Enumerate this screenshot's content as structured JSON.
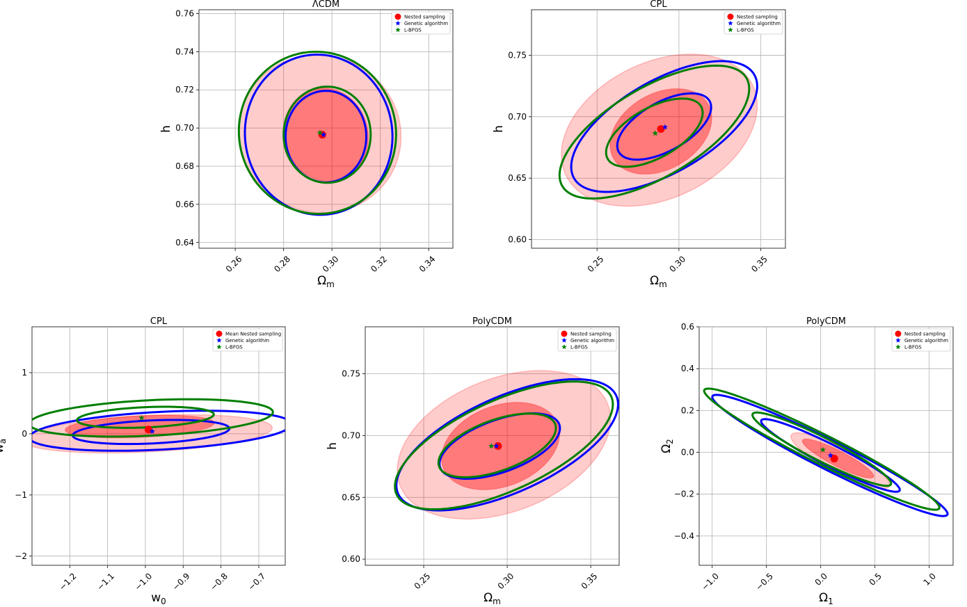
{
  "colors": {
    "nested_fill": "#ff0000",
    "genetic": "#0000ff",
    "lbfgs": "#007f00",
    "grid": "#b0b0b0"
  },
  "chart_data": [
    {
      "type": "scatter",
      "title": "ΛCDM",
      "xlabel": "Ω",
      "xlabel_sub": "m",
      "ylabel": "h",
      "ylabel_sub": "",
      "xlim": [
        0.245,
        0.35
      ],
      "ylim": [
        0.637,
        0.762
      ],
      "xticks": [
        0.26,
        0.28,
        0.3,
        0.32,
        0.34
      ],
      "xtick_labels": [
        "0.26",
        "0.28",
        "0.30",
        "0.32",
        "0.34"
      ],
      "yticks": [
        0.64,
        0.66,
        0.68,
        0.7,
        0.72,
        0.74,
        0.76
      ],
      "ytick_labels": [
        "0.64",
        "0.66",
        "0.68",
        "0.70",
        "0.72",
        "0.74",
        "0.76"
      ],
      "xtick_rotation": true,
      "legend": [
        "Nested sampling",
        "Genetic algorithm",
        "L-BFGS"
      ],
      "legend_position": "top-right",
      "points": {
        "nested": [
          0.296,
          0.6965
        ],
        "genetic": [
          0.2965,
          0.6965
        ],
        "lbfgs": [
          0.295,
          0.6975
        ]
      },
      "regions": [
        {
          "series": "Nested sampling",
          "level": "2-sigma",
          "cx": 0.295,
          "cy": 0.697,
          "rx": 0.0335,
          "ry": 0.0415,
          "angle": 5
        },
        {
          "series": "Nested sampling",
          "level": "1-sigma",
          "cx": 0.2975,
          "cy": 0.6965,
          "rx": 0.0175,
          "ry": 0.0245,
          "angle": 5
        }
      ],
      "contours": [
        {
          "series": "Genetic algorithm",
          "level": "2-sigma",
          "cx": 0.2945,
          "cy": 0.6965,
          "rx": 0.0305,
          "ry": 0.042,
          "angle": 2
        },
        {
          "series": "Genetic algorithm",
          "level": "1-sigma",
          "cx": 0.2975,
          "cy": 0.6955,
          "rx": 0.0167,
          "ry": 0.024,
          "angle": 0
        },
        {
          "series": "L-BFGS",
          "level": "2-sigma",
          "cx": 0.294,
          "cy": 0.6975,
          "rx": 0.0325,
          "ry": 0.0425,
          "angle": 2
        },
        {
          "series": "L-BFGS",
          "level": "1-sigma",
          "cx": 0.298,
          "cy": 0.6965,
          "rx": 0.018,
          "ry": 0.0252,
          "angle": 0
        }
      ]
    },
    {
      "type": "scatter",
      "title": "CPL",
      "xlabel": "Ω",
      "xlabel_sub": "m",
      "ylabel": "h",
      "ylabel_sub": "",
      "xlim": [
        0.21,
        0.365
      ],
      "ylim": [
        0.593,
        0.787
      ],
      "xticks": [
        0.25,
        0.3,
        0.35
      ],
      "xtick_labels": [
        "0.25",
        "0.30",
        "0.35"
      ],
      "yticks": [
        0.6,
        0.65,
        0.7,
        0.75
      ],
      "ytick_labels": [
        "0.60",
        "0.65",
        "0.70",
        "0.75"
      ],
      "xtick_rotation": true,
      "legend": [
        "Nested sampling",
        "Genetic algorithm",
        "L-BFGS"
      ],
      "legend_position": "top-right",
      "points": {
        "nested": [
          0.289,
          0.69
        ],
        "genetic": [
          0.2915,
          0.6915
        ],
        "lbfgs": [
          0.2855,
          0.6865
        ]
      },
      "regions": [
        {
          "series": "Nested sampling",
          "level": "2-sigma",
          "cx": 0.288,
          "cy": 0.689,
          "rx": 0.05,
          "ry": 0.07,
          "angle": -42
        },
        {
          "series": "Nested sampling",
          "level": "1-sigma",
          "cx": 0.289,
          "cy": 0.688,
          "rx": 0.027,
          "ry": 0.038,
          "angle": -35
        }
      ],
      "contours": [
        {
          "series": "Genetic algorithm",
          "level": "2-sigma",
          "cx": 0.291,
          "cy": 0.692,
          "rx": 0.07,
          "ry": 0.034,
          "angle": 42
        },
        {
          "series": "Genetic algorithm",
          "level": "1-sigma",
          "cx": 0.291,
          "cy": 0.692,
          "rx": 0.035,
          "ry": 0.018,
          "angle": 42
        },
        {
          "series": "L-BFGS",
          "level": "2-sigma",
          "cx": 0.285,
          "cy": 0.6875,
          "rx": 0.072,
          "ry": 0.033,
          "angle": 42
        },
        {
          "series": "L-BFGS",
          "level": "1-sigma",
          "cx": 0.285,
          "cy": 0.687,
          "rx": 0.036,
          "ry": 0.0185,
          "angle": 42
        }
      ]
    },
    {
      "type": "scatter",
      "title": "CPL",
      "xlabel": "w",
      "xlabel_sub": "0",
      "ylabel": "w",
      "ylabel_sub": "a",
      "xlim": [
        -1.3,
        -0.63
      ],
      "ylim": [
        -2.15,
        1.75
      ],
      "xticks": [
        -1.2,
        -1.1,
        -1.0,
        -0.9,
        -0.8,
        -0.7
      ],
      "xtick_labels": [
        "−1.2",
        "−1.1",
        "−1.0",
        "−0.9",
        "−0.8",
        "−0.7"
      ],
      "yticks": [
        -2,
        -1,
        0,
        1
      ],
      "ytick_labels": [
        "−2",
        "−1",
        "0",
        "1"
      ],
      "xtick_rotation": true,
      "legend": [
        "Mean Nested sampling",
        "Genetic algorithm",
        "L-BFGS"
      ],
      "legend_position": "top-right",
      "points": {
        "nested": [
          -0.992,
          0.07
        ],
        "genetic": [
          -0.982,
          0.04
        ],
        "lbfgs": [
          -1.01,
          0.26
        ]
      },
      "regions": [
        {
          "series": "Nested sampling",
          "level": "2-sigma",
          "cx": -0.995,
          "cy": 0.0,
          "rx": 0.265,
          "ry": 0.37,
          "angle": -50
        },
        {
          "series": "Nested sampling",
          "level": "1-sigma",
          "cx": -1.015,
          "cy": 0.12,
          "rx": 0.16,
          "ry": 0.22,
          "angle": -50
        }
      ],
      "contours": [
        {
          "series": "Genetic algorithm",
          "level": "2-sigma",
          "cx": -0.96,
          "cy": 0.05,
          "rx": 0.275,
          "ry": 0.39,
          "angle": -50
        },
        {
          "series": "Genetic algorithm",
          "level": "1-sigma",
          "cx": -0.985,
          "cy": 0.03,
          "rx": 0.17,
          "ry": 0.23,
          "angle": -50
        },
        {
          "series": "L-BFGS",
          "level": "2-sigma",
          "cx": -0.985,
          "cy": 0.26,
          "rx": 0.26,
          "ry": 0.36,
          "angle": -50
        },
        {
          "series": "L-BFGS",
          "level": "1-sigma",
          "cx": -1.0,
          "cy": 0.27,
          "rx": 0.15,
          "ry": 0.2,
          "angle": -50
        }
      ]
    },
    {
      "type": "scatter",
      "title": "PolyCDM",
      "xlabel": "Ω",
      "xlabel_sub": "m",
      "ylabel": "h",
      "ylabel_sub": "",
      "xlim": [
        0.215,
        0.367
      ],
      "ylim": [
        0.595,
        0.788
      ],
      "xticks": [
        0.25,
        0.3,
        0.35
      ],
      "xtick_labels": [
        "0.25",
        "0.30",
        "0.35"
      ],
      "yticks": [
        0.6,
        0.65,
        0.7,
        0.75
      ],
      "ytick_labels": [
        "0.60",
        "0.65",
        "0.70",
        "0.75"
      ],
      "xtick_rotation": true,
      "legend": [
        "Nested sampling",
        "Genetic algorithm",
        "L-BFGS"
      ],
      "legend_position": "top-right",
      "points": {
        "nested": [
          0.2945,
          0.6915
        ],
        "genetic": [
          0.2935,
          0.6915
        ],
        "lbfgs": [
          0.2905,
          0.6915
        ]
      },
      "regions": [
        {
          "series": "Nested sampling",
          "level": "2-sigma",
          "cx": 0.298,
          "cy": 0.6925,
          "rx": 0.05,
          "ry": 0.072,
          "angle": -50
        },
        {
          "series": "Nested sampling",
          "level": "1-sigma",
          "cx": 0.296,
          "cy": 0.6915,
          "rx": 0.03,
          "ry": 0.04,
          "angle": -45
        }
      ],
      "contours": [
        {
          "series": "Genetic algorithm",
          "level": "2-sigma",
          "cx": 0.3,
          "cy": 0.6925,
          "rx": 0.077,
          "ry": 0.036,
          "angle": 35
        },
        {
          "series": "Genetic algorithm",
          "level": "1-sigma",
          "cx": 0.2955,
          "cy": 0.6915,
          "rx": 0.04,
          "ry": 0.02,
          "angle": 30
        },
        {
          "series": "L-BFGS",
          "level": "2-sigma",
          "cx": 0.298,
          "cy": 0.692,
          "rx": 0.076,
          "ry": 0.034,
          "angle": 35
        },
        {
          "series": "L-BFGS",
          "level": "1-sigma",
          "cx": 0.294,
          "cy": 0.692,
          "rx": 0.039,
          "ry": 0.0195,
          "angle": 30
        }
      ]
    },
    {
      "type": "scatter",
      "title": "PolyCDM",
      "xlabel": "Ω",
      "xlabel_sub": "1",
      "ylabel": "Ω",
      "ylabel_sub": "2",
      "xlim": [
        -1.12,
        1.22
      ],
      "ylim": [
        -0.54,
        0.6
      ],
      "xticks": [
        -1.0,
        -0.5,
        0.0,
        0.5,
        1.0
      ],
      "xtick_labels": [
        "−1.0",
        "−0.5",
        "0.0",
        "0.5",
        "1.0"
      ],
      "yticks": [
        -0.4,
        -0.2,
        0.0,
        0.2,
        0.4,
        0.6
      ],
      "ytick_labels": [
        "−0.4",
        "−0.2",
        "0.0",
        "0.2",
        "0.4",
        "0.6"
      ],
      "xtick_rotation": true,
      "legend": [
        "Nested sampling",
        "Genetic algorithm",
        "L-BFGS"
      ],
      "legend_position": "top-right",
      "points": {
        "nested": [
          0.125,
          -0.03
        ],
        "genetic": [
          0.09,
          -0.015
        ],
        "lbfgs": [
          0.02,
          0.012
        ]
      },
      "regions": [
        {
          "series": "Nested sampling",
          "level": "2-sigma",
          "cx": 0.18,
          "cy": -0.04,
          "rx": 0.47,
          "ry": 0.065,
          "angle": -14.5
        },
        {
          "series": "Nested sampling",
          "level": "1-sigma",
          "cx": 0.16,
          "cy": -0.03,
          "rx": 0.34,
          "ry": 0.04,
          "angle": -14.5
        }
      ],
      "contours": [
        {
          "series": "Genetic algorithm",
          "level": "2-sigma",
          "cx": 0.085,
          "cy": -0.015,
          "rx": 1.12,
          "ry": 0.075,
          "angle": -14.5
        },
        {
          "series": "Genetic algorithm",
          "level": "1-sigma",
          "cx": 0.09,
          "cy": -0.015,
          "rx": 0.66,
          "ry": 0.055,
          "angle": -14.5
        },
        {
          "series": "L-BFGS",
          "level": "2-sigma",
          "cx": 0.01,
          "cy": 0.015,
          "rx": 1.12,
          "ry": 0.075,
          "angle": -14.5
        },
        {
          "series": "L-BFGS",
          "level": "1-sigma",
          "cx": 0.01,
          "cy": 0.015,
          "rx": 0.66,
          "ry": 0.06,
          "angle": -14.5
        }
      ]
    }
  ]
}
